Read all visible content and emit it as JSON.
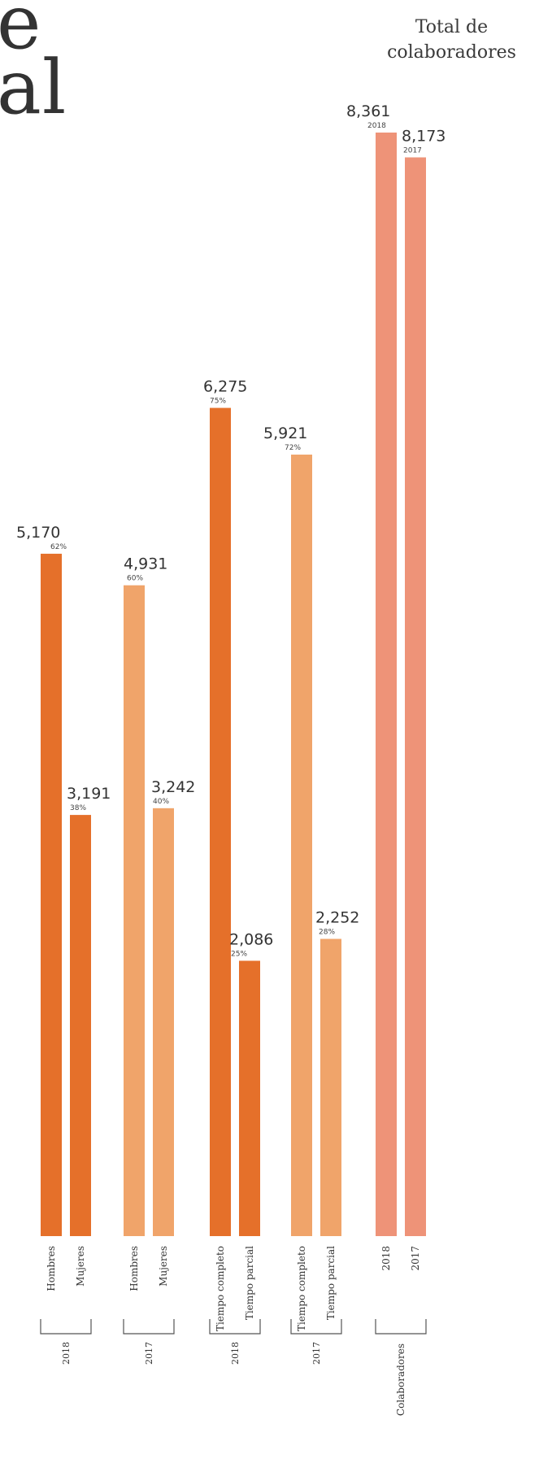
{
  "title_fragments": [
    "e",
    "al"
  ],
  "total_label_line1": "Total de",
  "total_label_line2": "colaboradores",
  "colors": {
    "dark_orange": "#e5702a",
    "light_orange": "#f0a46a",
    "salmon": "#ee9378",
    "text": "#333333"
  },
  "chart_data": {
    "type": "bar",
    "ylim": [
      0,
      8500
    ],
    "bars": [
      {
        "category": "Hombres",
        "group": "2018",
        "value": 5170,
        "value_label": "5,170",
        "sub_label": "62%",
        "color": "dark_orange"
      },
      {
        "category": "Mujeres",
        "group": "2018",
        "value": 3191,
        "value_label": "3,191",
        "sub_label": "38%",
        "color": "dark_orange"
      },
      {
        "category": "Hombres",
        "group": "2017",
        "value": 4931,
        "value_label": "4,931",
        "sub_label": "60%",
        "color": "light_orange"
      },
      {
        "category": "Mujeres",
        "group": "2017",
        "value": 3242,
        "value_label": "3,242",
        "sub_label": "40%",
        "color": "light_orange"
      },
      {
        "category": "Tiempo completo",
        "group": "2018",
        "value": 6275,
        "value_label": "6,275",
        "sub_label": "75%",
        "color": "dark_orange"
      },
      {
        "category": "Tiempo parcial",
        "group": "2018",
        "value": 2086,
        "value_label": "2,086",
        "sub_label": "25%",
        "color": "dark_orange"
      },
      {
        "category": "Tiempo completo",
        "group": "2017",
        "value": 5921,
        "value_label": "5,921",
        "sub_label": "72%",
        "color": "light_orange"
      },
      {
        "category": "Tiempo parcial",
        "group": "2017",
        "value": 2252,
        "value_label": "2,252",
        "sub_label": "28%",
        "color": "light_orange"
      },
      {
        "category": "2018",
        "group": "Colaboradores",
        "value": 8361,
        "value_label": "8,361",
        "sub_label": "2018",
        "color": "salmon"
      },
      {
        "category": "2017",
        "group": "Colaboradores",
        "value": 8173,
        "value_label": "8,173",
        "sub_label": "2017",
        "color": "salmon"
      }
    ],
    "groups": [
      {
        "label": "2018",
        "bars": [
          0,
          1
        ]
      },
      {
        "label": "2017",
        "bars": [
          2,
          3
        ]
      },
      {
        "label": "2018",
        "bars": [
          4,
          5
        ]
      },
      {
        "label": "2017",
        "bars": [
          6,
          7
        ]
      },
      {
        "label": "Colaboradores",
        "bars": [
          8,
          9
        ]
      }
    ]
  }
}
